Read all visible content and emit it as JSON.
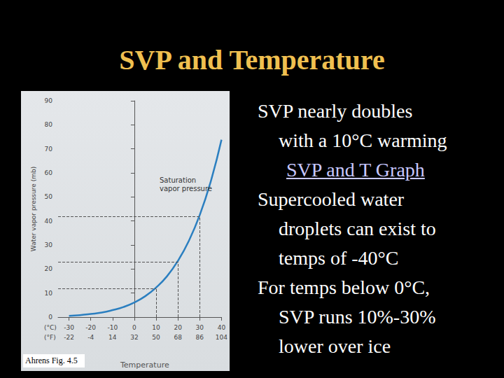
{
  "slide": {
    "title": "SVP and Temperature",
    "caption": "Ahrens Fig. 4.5",
    "items": [
      {
        "lines": [
          "SVP nearly doubles",
          "with a 10°C warming"
        ]
      },
      {
        "link": "SVP and T Graph"
      },
      {
        "lines": [
          "Supercooled water",
          "droplets can exist to",
          "temps of -40°C"
        ]
      },
      {
        "lines": [
          "For temps below 0°C,",
          "SVP runs 10%-30%",
          "lower over ice"
        ]
      }
    ]
  },
  "chart_data": {
    "type": "line",
    "y_label": "Water vapor pressure (mb)",
    "x_label": "Temperature",
    "annotation": "Saturation\nvapor pressure",
    "x_units": [
      "(°C)",
      "(°F)"
    ],
    "x": [
      -30,
      -25,
      -20,
      -15,
      -10,
      -5,
      0,
      5,
      10,
      15,
      20,
      25,
      30,
      35,
      40
    ],
    "values": [
      0.5,
      0.8,
      1.3,
      1.9,
      2.9,
      4.2,
      6.1,
      8.7,
      12.3,
      17.0,
      23.4,
      31.7,
      42.4,
      56.2,
      73.8
    ],
    "color": "#2b7fc0",
    "xlim": [
      -35,
      40
    ],
    "xticks": [
      -30,
      -20,
      -10,
      0,
      10,
      20,
      30,
      40
    ],
    "xticks_f": [
      -22,
      -4,
      14,
      32,
      50,
      68,
      86,
      104
    ],
    "ylim": [
      0,
      90
    ],
    "yticks": [
      0,
      10,
      20,
      30,
      40,
      50,
      60,
      70,
      80,
      90
    ],
    "guides": [
      {
        "x": 10,
        "y": 12
      },
      {
        "x": 20,
        "y": 23
      },
      {
        "x": 30,
        "y": 42
      }
    ],
    "grid": false
  }
}
